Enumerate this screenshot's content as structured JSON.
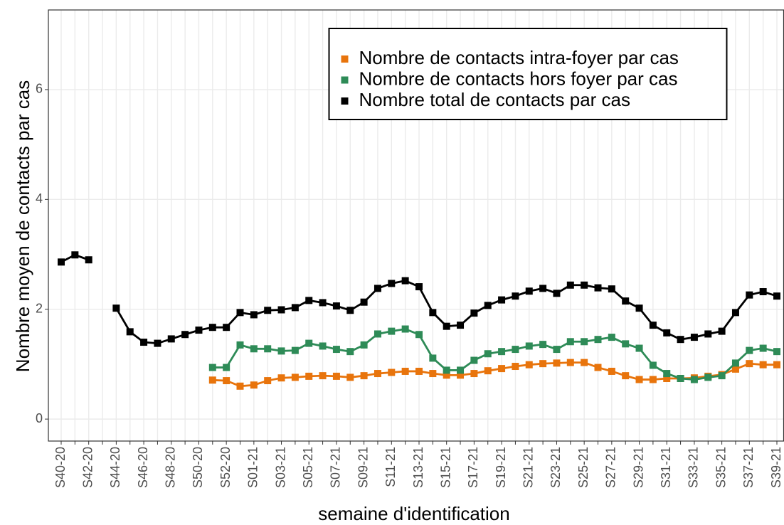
{
  "chart_data": {
    "type": "line",
    "xlabel": "semaine d'identification",
    "ylabel": "Nombre moyen de contacts par cas",
    "categories": [
      "S40-20",
      null,
      "S42-20",
      null,
      "S44-20",
      null,
      "S46-20",
      null,
      "S48-20",
      null,
      "S50-20",
      null,
      "S52-20",
      null,
      "S01-21",
      null,
      "S03-21",
      null,
      "S05-21",
      null,
      "S07-21",
      null,
      "S09-21",
      null,
      "S11-21",
      null,
      "S13-21",
      null,
      "S15-21",
      null,
      "S17-21",
      null,
      "S19-21",
      null,
      "S21-21",
      null,
      "S23-21",
      null,
      "S25-21",
      null,
      "S27-21",
      null,
      "S29-21",
      null,
      "S31-21",
      null,
      "S33-21",
      null,
      "S35-21",
      null,
      "S37-21",
      null,
      "S39-21"
    ],
    "series": [
      {
        "name": "Nombre de contacts intra-foyer par cas",
        "color": "#e8740c",
        "values": [
          null,
          null,
          null,
          null,
          null,
          null,
          null,
          null,
          null,
          null,
          null,
          0.71,
          0.7,
          0.6,
          0.62,
          0.7,
          0.75,
          0.76,
          0.78,
          0.79,
          0.78,
          0.76,
          0.79,
          0.83,
          0.85,
          0.87,
          0.87,
          0.83,
          0.8,
          0.8,
          0.83,
          0.88,
          0.92,
          0.96,
          0.99,
          1.01,
          1.02,
          1.03,
          1.03,
          0.94,
          0.87,
          0.79,
          0.72,
          0.72,
          0.74,
          0.74,
          0.75,
          0.78,
          0.81,
          0.91,
          1.01,
          0.99,
          0.99
        ]
      },
      {
        "name": "Nombre de contacts hors foyer par cas",
        "color": "#2e8b57",
        "values": [
          null,
          null,
          null,
          null,
          null,
          null,
          null,
          null,
          null,
          null,
          null,
          0.94,
          0.94,
          1.35,
          1.28,
          1.28,
          1.24,
          1.25,
          1.38,
          1.33,
          1.27,
          1.23,
          1.35,
          1.55,
          1.6,
          1.64,
          1.54,
          1.11,
          0.89,
          0.89,
          1.07,
          1.19,
          1.23,
          1.27,
          1.33,
          1.36,
          1.27,
          1.41,
          1.41,
          1.45,
          1.49,
          1.37,
          1.29,
          0.98,
          0.83,
          0.74,
          0.72,
          0.76,
          0.79,
          1.02,
          1.25,
          1.29,
          1.23
        ]
      },
      {
        "name": "Nombre total de contacts par cas",
        "color": "#000000",
        "values": [
          2.86,
          2.99,
          2.9,
          null,
          2.02,
          1.59,
          1.4,
          1.38,
          1.46,
          1.54,
          1.62,
          1.67,
          1.67,
          1.94,
          1.9,
          1.98,
          1.99,
          2.03,
          2.16,
          2.12,
          2.06,
          1.98,
          2.13,
          2.38,
          2.47,
          2.52,
          2.41,
          1.94,
          1.69,
          1.71,
          1.93,
          2.07,
          2.17,
          2.24,
          2.33,
          2.38,
          2.29,
          2.44,
          2.44,
          2.39,
          2.37,
          2.15,
          2.02,
          1.71,
          1.57,
          1.45,
          1.49,
          1.55,
          1.6,
          1.94,
          2.26,
          2.32,
          2.24
        ]
      }
    ],
    "ylim": [
      -0.4,
      7.45
    ],
    "yticks": [
      0,
      2,
      4,
      6
    ],
    "grid": true,
    "legend": "top-right"
  }
}
